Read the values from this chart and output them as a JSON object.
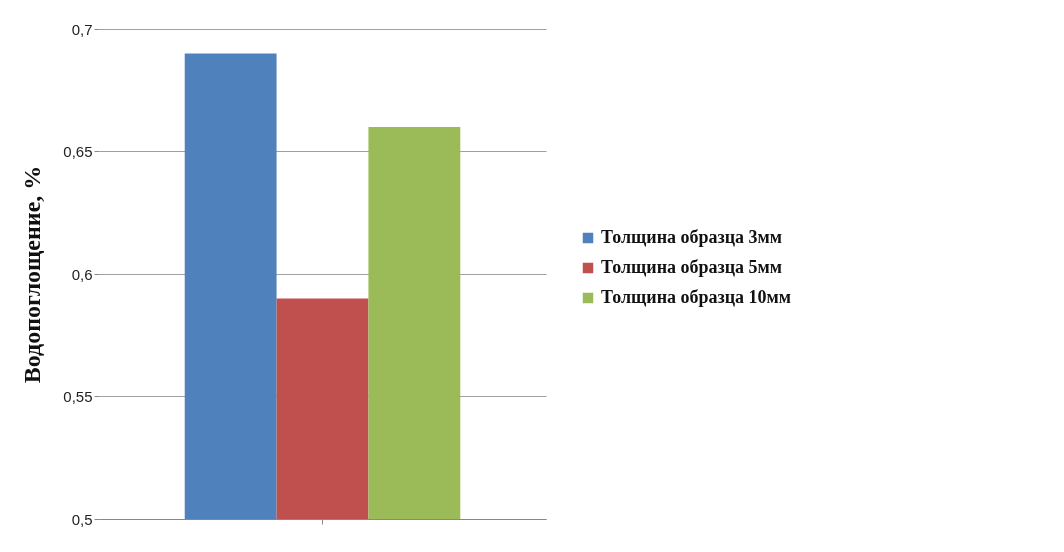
{
  "chart_data": {
    "type": "bar",
    "ylabel": "Водопоглощение, %",
    "categories": [
      null
    ],
    "series": [
      {
        "name": "Толщина образца 3мм",
        "color": "#4f81bd",
        "values": [
          0.69
        ]
      },
      {
        "name": "Толщина образца 5мм",
        "color": "#c0504d",
        "values": [
          0.59
        ]
      },
      {
        "name": "Толщина образца 10мм",
        "color": "#9bbb59",
        "values": [
          0.66
        ]
      }
    ],
    "ylim": [
      0.5,
      0.7
    ],
    "yticks": [
      {
        "value": 0.5,
        "label": "0,5"
      },
      {
        "value": 0.55,
        "label": "0,55"
      },
      {
        "value": 0.6,
        "label": "0,6"
      },
      {
        "value": 0.65,
        "label": "0,65"
      },
      {
        "value": 0.7,
        "label": "0,7"
      }
    ],
    "grid": "y",
    "legend": "right"
  }
}
